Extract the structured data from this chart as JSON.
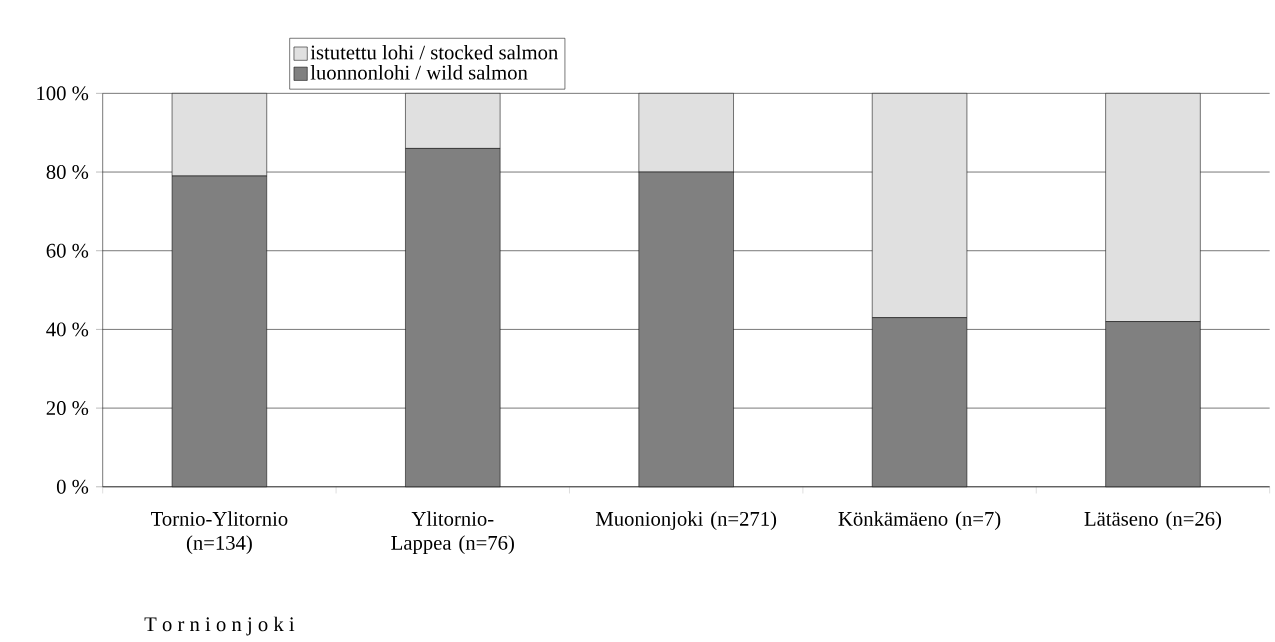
{
  "chart_data": {
    "type": "bar",
    "stacked": true,
    "categories": [
      "Tornio-Ylitornio (n=134)",
      "Ylitornio-Lappea (n=76)",
      "Muonionjoki (n=271)",
      "Könkämäeno (n=7)",
      "Lätäseno (n=26)"
    ],
    "series": [
      {
        "name": "luonnonlohi / wild salmon",
        "color": "#808080",
        "values": [
          79,
          86,
          80,
          43,
          42
        ]
      },
      {
        "name": "istutettu lohi / stocked salmon",
        "color": "#e0e0e0",
        "values": [
          21,
          14,
          20,
          57,
          58
        ]
      }
    ],
    "ylim": [
      0,
      100
    ],
    "yticks": [
      {
        "value": 0,
        "label": "0 %"
      },
      {
        "value": 20,
        "label": "20 %"
      },
      {
        "value": 40,
        "label": "40 %"
      },
      {
        "value": 60,
        "label": "60 %"
      },
      {
        "value": 80,
        "label": "80 %"
      },
      {
        "value": 100,
        "label": "100 %"
      }
    ],
    "grid": "y",
    "legend": "top",
    "annotations": [
      "T o r n i o n j o k i"
    ]
  }
}
